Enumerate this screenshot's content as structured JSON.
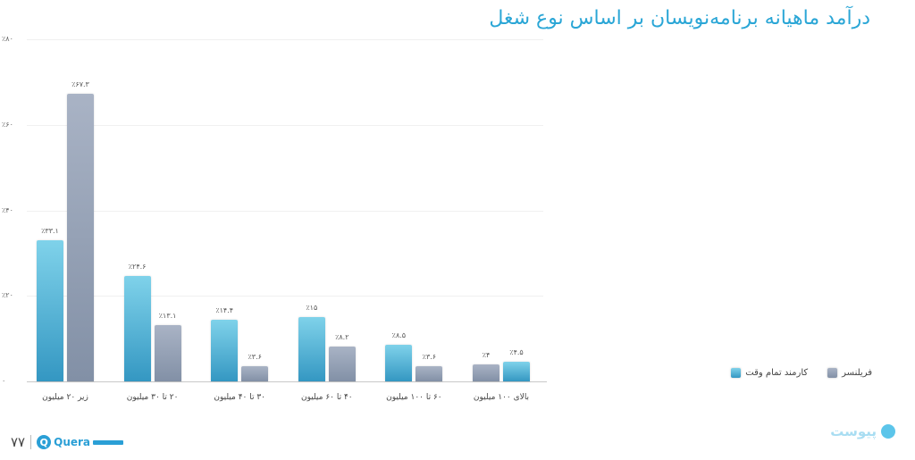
{
  "title": "درآمد ماهیانه برنامه‌نویسان بر اساس نوع شغل",
  "chart_data": {
    "type": "bar",
    "title": "درآمد ماهیانه برنامه‌نویسان بر اساس نوع شغل",
    "xlabel": "",
    "ylabel": "",
    "ylim": [
      0,
      80
    ],
    "yticks": [
      "۰",
      "٪۲۰",
      "٪۴۰",
      "٪۶۰",
      "٪۸۰"
    ],
    "grid": true,
    "legend_position": "bottom-right",
    "categories": [
      "زیر ۲۰ میلیون",
      "۲۰ تا ۳۰ میلیون",
      "۳۰ تا ۴۰ میلیون",
      "۴۰ تا ۶۰ میلیون",
      "۶۰ تا ۱۰۰ میلیون",
      "بالای ۱۰۰ میلیون"
    ],
    "series": [
      {
        "name": "کارمند تمام وقت",
        "color": "#3ea9d2",
        "values": [
          33.1,
          24.6,
          14.4,
          15,
          8.5,
          4.5
        ],
        "labels": [
          "٪۳۳.۱",
          "٪۲۴.۶",
          "٪۱۴.۴",
          "٪۱۵",
          "٪۸.۵",
          "٪۴.۵"
        ]
      },
      {
        "name": "فریلنسر",
        "color": "#8f9bb0",
        "values": [
          67.3,
          13.1,
          3.6,
          8.2,
          3.6,
          4
        ],
        "labels": [
          "٪۶۷.۳",
          "٪۱۳.۱",
          "٪۳.۶",
          "٪۸.۲",
          "٪۳.۶",
          "٪۴"
        ]
      }
    ]
  },
  "legend": [
    {
      "label": "کارمند تمام وقت",
      "color": "#3ea9d2"
    },
    {
      "label": "فریلنسر",
      "color": "#8f9bb0"
    }
  ],
  "footer": {
    "page_number": "۷۷",
    "left_logo": "Quera",
    "right_logo": "پیوست"
  }
}
